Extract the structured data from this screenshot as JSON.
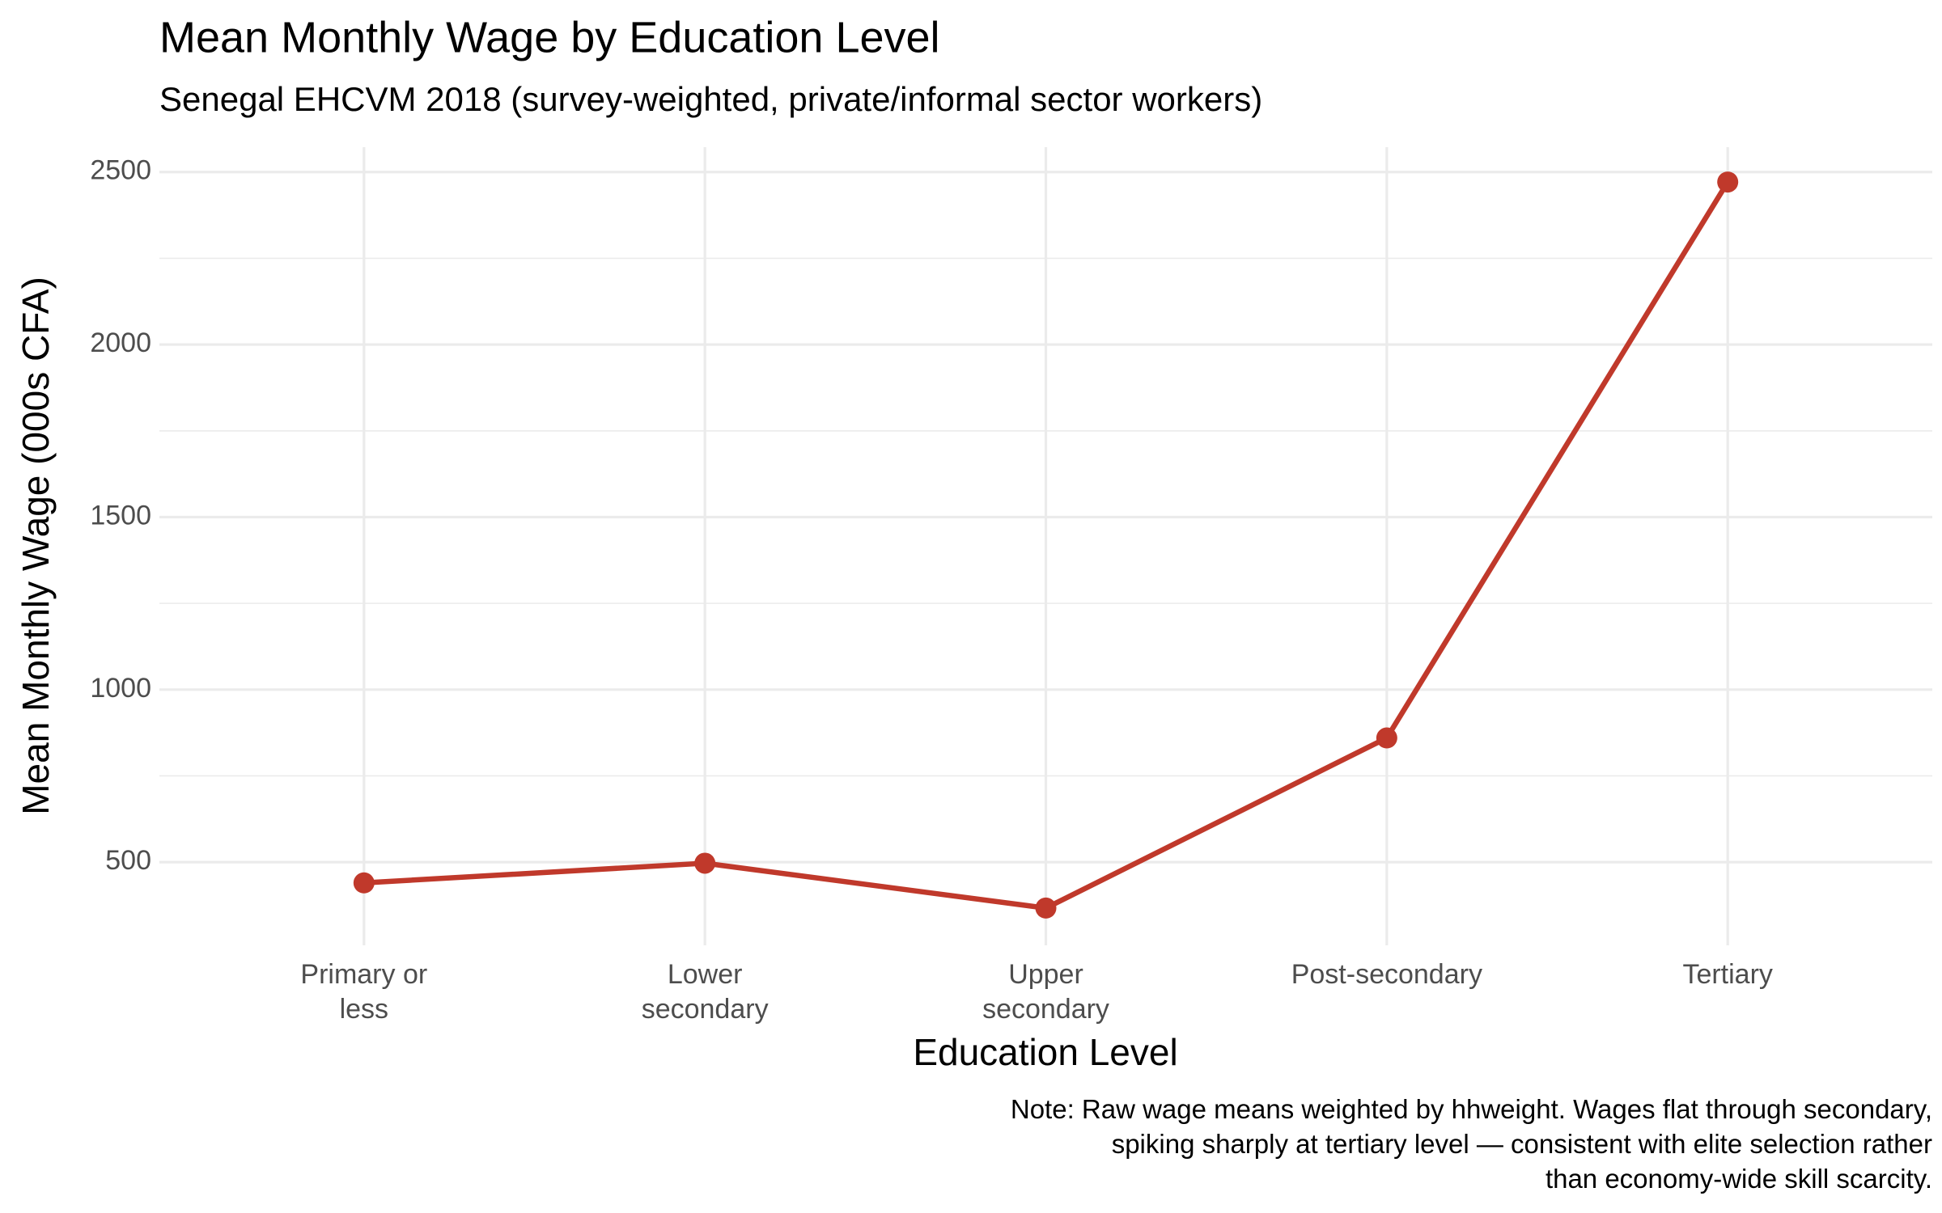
{
  "chart_data": {
    "type": "line",
    "title": "Mean Monthly Wage by Education Level",
    "subtitle": "Senegal EHCVM 2018 (survey-weighted, private/informal sector workers)",
    "x_label": "Education Level",
    "y_label": "Mean Monthly Wage (000s CFA)",
    "note": "Note: Raw wage means weighted by hhweight. Wages flat through secondary,\nspiking sharply at tertiary level — consistent with elite selection rather\nthan economy-wide skill scarcity.",
    "categories": [
      "Primary or\nless",
      "Lower\nsecondary",
      "Upper\nsecondary",
      "Post-secondary",
      "Tertiary"
    ],
    "series": [
      {
        "name": "Mean wage",
        "color": "#c0392b",
        "values": [
          440,
          497,
          367,
          860,
          2471
        ]
      }
    ],
    "ylim": [
      259,
      2572
    ],
    "yticks": [
      500,
      1000,
      1500,
      2000,
      2500
    ],
    "grid": true
  }
}
